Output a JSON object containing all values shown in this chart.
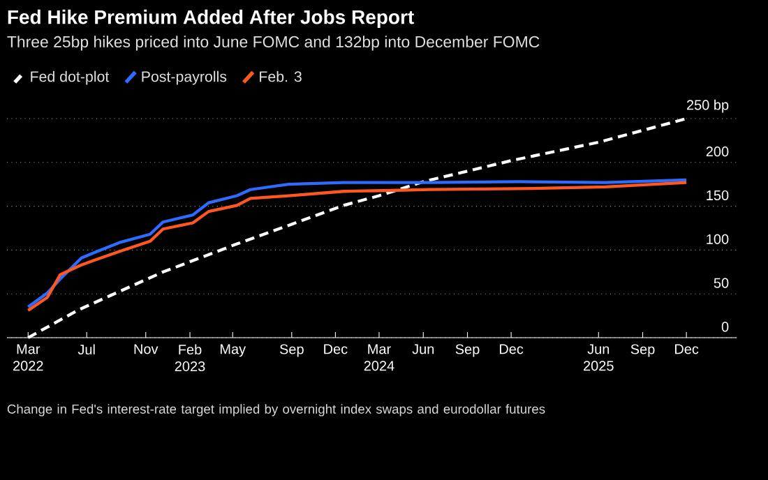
{
  "chart_data": {
    "type": "line",
    "title": "Fed Hike Premium Added After Jobs Report",
    "subtitle": "Three 25bp hikes priced into June FOMC and 132bp into December FOMC",
    "x": [
      "2022-03-01",
      "2022-04-10",
      "2022-05-07",
      "2022-06-20",
      "2022-07-25",
      "2022-09-10",
      "2022-11-10",
      "2022-12-07",
      "2023-02-07",
      "2023-03-12",
      "2023-05-10",
      "2023-06-07",
      "2023-08-25",
      "2023-12-18",
      "2024-03-25",
      "2024-06-15",
      "2024-12-15",
      "2025-06-15",
      "2025-12-01"
    ],
    "series": [
      {
        "name": "Fed dot-plot",
        "color": "#ffffff",
        "line_style": "dashed",
        "x": [
          "2022-03-01",
          "2022-06-15",
          "2022-12-07",
          "2023-05-10",
          "2023-08-25",
          "2023-12-18",
          "2024-03-01",
          "2024-06-01",
          "2024-12-01",
          "2025-06-01",
          "2025-12-01"
        ],
        "values": [
          0,
          32,
          75,
          107,
          128,
          151,
          162,
          178,
          202,
          223,
          250
        ]
      },
      {
        "name": "Post-payrolls",
        "color": "#2f6bff",
        "values": [
          35,
          51,
          67,
          91,
          99,
          109,
          118,
          132,
          140,
          154,
          162,
          169,
          175,
          177,
          177,
          177,
          178,
          177,
          180
        ]
      },
      {
        "name": "Feb. 3",
        "color": "#ff5722",
        "values": [
          31,
          46,
          72,
          83,
          90,
          99,
          110,
          124,
          131,
          144,
          151,
          159,
          162,
          167,
          168,
          169,
          170,
          172,
          177
        ]
      }
    ],
    "xlim": [
      "2022-01-16",
      "2026-03-16"
    ],
    "xticks": [
      {
        "value": "2022-03-01",
        "label": "Mar 2022"
      },
      {
        "value": "2022-07-01",
        "label": "Jul"
      },
      {
        "value": "2022-11-01",
        "label": "Nov"
      },
      {
        "value": "2023-02-01",
        "label": "Feb 2023"
      },
      {
        "value": "2023-05-01",
        "label": "May"
      },
      {
        "value": "2023-09-01",
        "label": "Sep"
      },
      {
        "value": "2023-12-01",
        "label": "Dec"
      },
      {
        "value": "2024-03-01",
        "label": "Mar 2024"
      },
      {
        "value": "2024-06-01",
        "label": "Jun"
      },
      {
        "value": "2024-09-01",
        "label": "Sep"
      },
      {
        "value": "2024-12-01",
        "label": "Dec"
      },
      {
        "value": "2025-06-01",
        "label": "Jun 2025"
      },
      {
        "value": "2025-09-01",
        "label": "Sep"
      },
      {
        "value": "2025-12-01",
        "label": "Dec"
      }
    ],
    "ylim": [
      0,
      250
    ],
    "yticks": [
      0,
      50,
      100,
      150,
      200,
      {
        "value": 250,
        "label": "250 bp"
      }
    ],
    "grid": "y",
    "legend": "top left",
    "annotations": [
      "Change in Fed's interest-rate target implied by overnight index swaps and eurodollar futures"
    ]
  }
}
